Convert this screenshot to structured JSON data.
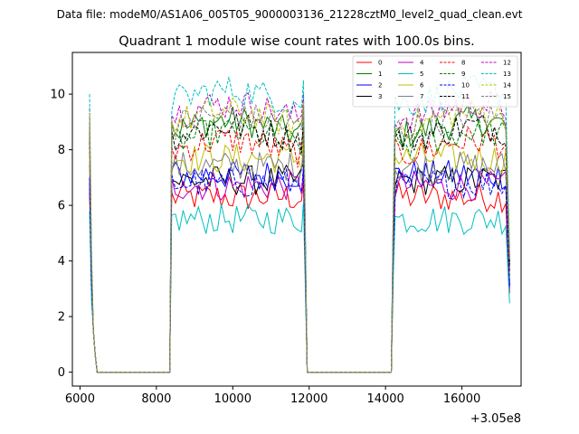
{
  "figure": {
    "suptitle": "Data file: modeM0/AS1A06_005T05_9000003136_21228cztM0_level2_quad_clean.evt"
  },
  "chart_data": {
    "type": "line",
    "title": "Quadrant 1 module wise count rates with 100.0s bins.",
    "xlabel": "",
    "ylabel": "",
    "x_offset_label": "+3.05e8",
    "xlim": [
      5800,
      17550
    ],
    "ylim": [
      -0.5,
      11.5
    ],
    "xticks": [
      6000,
      8000,
      10000,
      12000,
      14000,
      16000
    ],
    "xtick_labels": [
      "6000",
      "8000",
      "10000",
      "12000",
      "14000",
      "16000"
    ],
    "yticks": [
      0,
      2,
      4,
      6,
      8,
      10
    ],
    "ytick_labels": [
      "0",
      "2",
      "4",
      "6",
      "8",
      "10"
    ],
    "grid": false,
    "legend_location": "top-right",
    "segments": [
      {
        "x_start": 6250,
        "x_end": 8350,
        "drop_end": 6450
      },
      {
        "x_start": 8350,
        "x_end": 11900,
        "rise_to": 8400
      },
      {
        "x_start": 11900,
        "x_end": 14150,
        "drop_end": 11950
      },
      {
        "x_start": 14150,
        "x_end": 17250,
        "rise_to": 14250
      }
    ],
    "series": [
      {
        "name": "0",
        "color": "#ff0000",
        "dash": "solid",
        "level": 6.3,
        "start": 6.6
      },
      {
        "name": "1",
        "color": "#008000",
        "dash": "solid",
        "level": 8.8,
        "start": 9.0
      },
      {
        "name": "2",
        "color": "#0000ff",
        "dash": "solid",
        "level": 7.1,
        "start": 6.8
      },
      {
        "name": "3",
        "color": "#000000",
        "dash": "solid",
        "level": 6.9,
        "start": 7.0
      },
      {
        "name": "4",
        "color": "#bf00bf",
        "dash": "solid",
        "level": 6.7,
        "start": 6.9
      },
      {
        "name": "5",
        "color": "#00bfbf",
        "dash": "solid",
        "level": 5.5,
        "start": 5.8
      },
      {
        "name": "6",
        "color": "#bfbf00",
        "dash": "solid",
        "level": 7.7,
        "start": 7.9
      },
      {
        "name": "7",
        "color": "#808080",
        "dash": "solid",
        "level": 7.4,
        "start": 7.5
      },
      {
        "name": "8",
        "color": "#ff0000",
        "dash": "dashed",
        "level": 8.1,
        "start": 8.3
      },
      {
        "name": "9",
        "color": "#008000",
        "dash": "dashed",
        "level": 8.4,
        "start": 8.6
      },
      {
        "name": "10",
        "color": "#0000ff",
        "dash": "dashed",
        "level": 6.8,
        "start": 7.0
      },
      {
        "name": "11",
        "color": "#000000",
        "dash": "dashed",
        "level": 8.6,
        "start": 8.8
      },
      {
        "name": "12",
        "color": "#bf00bf",
        "dash": "dashed",
        "level": 9.4,
        "start": 9.5
      },
      {
        "name": "13",
        "color": "#00bfbf",
        "dash": "dashed",
        "level": 9.9,
        "start": 10.0
      },
      {
        "name": "14",
        "color": "#bfbf00",
        "dash": "dashed",
        "level": 9.1,
        "start": 9.3
      },
      {
        "name": "15",
        "color": "#808080",
        "dash": "dashed",
        "level": 9.0,
        "start": 9.2
      }
    ]
  }
}
